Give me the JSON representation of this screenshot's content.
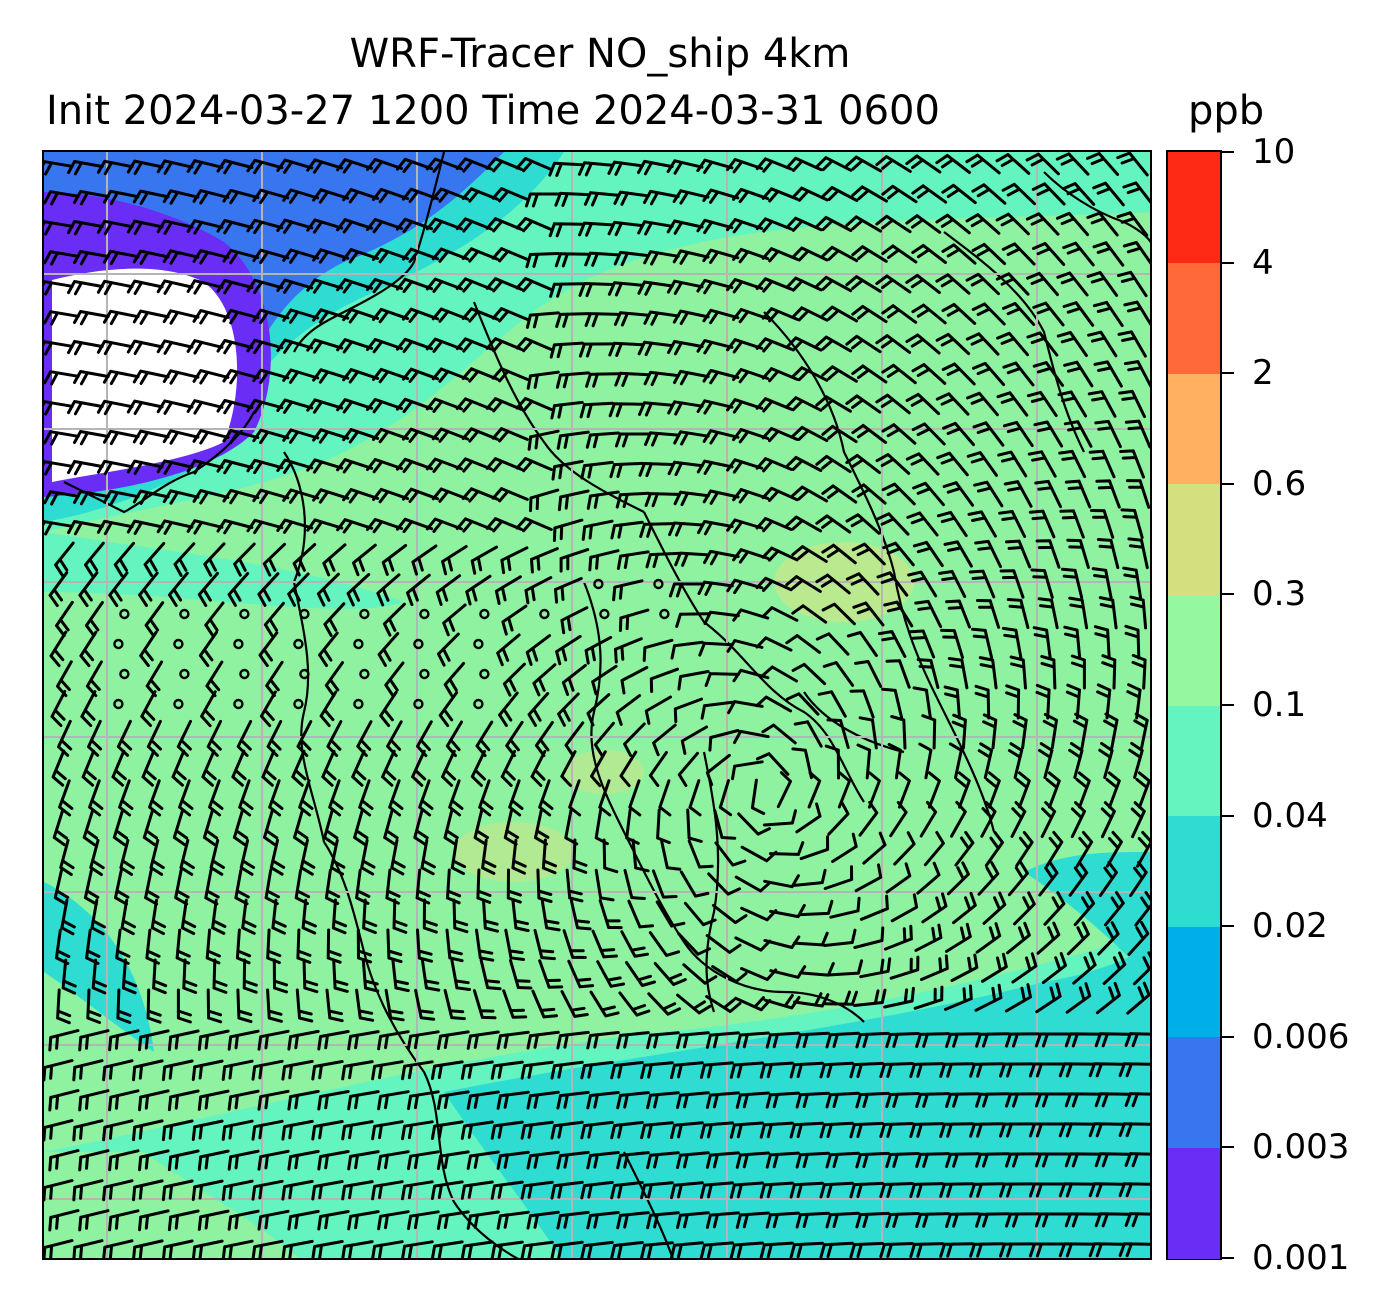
{
  "title": {
    "line1": "WRF-Tracer NO_ship 4km",
    "line2": "Init 2024-03-27 1200 Time 2024-03-31 0600",
    "units": "ppb"
  },
  "colorbar": {
    "levels": [
      "0.001",
      "0.003",
      "0.006",
      "0.02",
      "0.04",
      "0.1",
      "0.3",
      "0.6",
      "2",
      "4",
      "10"
    ],
    "colors": [
      "#6a2df5",
      "#3876f0",
      "#00aee8",
      "#2fdcd2",
      "#64f4c0",
      "#95f79f",
      "#d4df80",
      "#ffb060",
      "#ff6a38",
      "#ff2a16"
    ]
  },
  "map": {
    "field_colors": {
      "background": "#8ff2a0",
      "teal": "#2fdcd2",
      "aqua": "#64f4c0",
      "blue": "#3876f0",
      "violet": "#6a2df5",
      "khaki": "#c9e58a",
      "white_missing": "#ffffff"
    },
    "gridline_color": "#b5b5b5",
    "coastline_color": "#000000",
    "gridlines": "on",
    "wind_barbs": "on"
  }
}
